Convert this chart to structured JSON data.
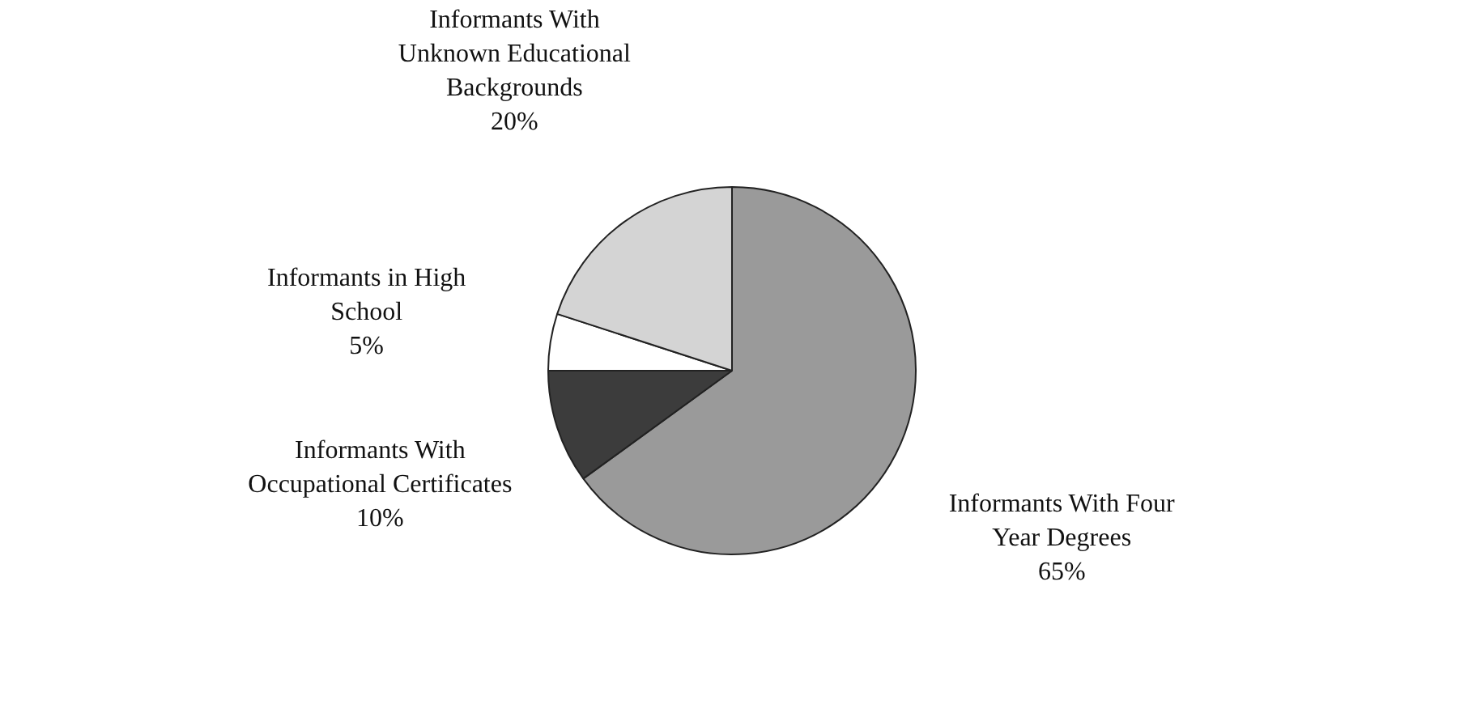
{
  "chart_data": {
    "type": "pie",
    "categories": [
      "Informants With Four Year Degrees",
      "Informants With Occupational Certificates",
      "Informants in High School",
      "Informants With Unknown Educational Backgrounds"
    ],
    "values": [
      65,
      10,
      5,
      20
    ],
    "value_labels": [
      "65%",
      "10%",
      "5%",
      "20%"
    ],
    "colors": [
      "#9a9a9a",
      "#3c3c3c",
      "#ffffff",
      "#d4d4d4"
    ],
    "legend": false
  }
}
